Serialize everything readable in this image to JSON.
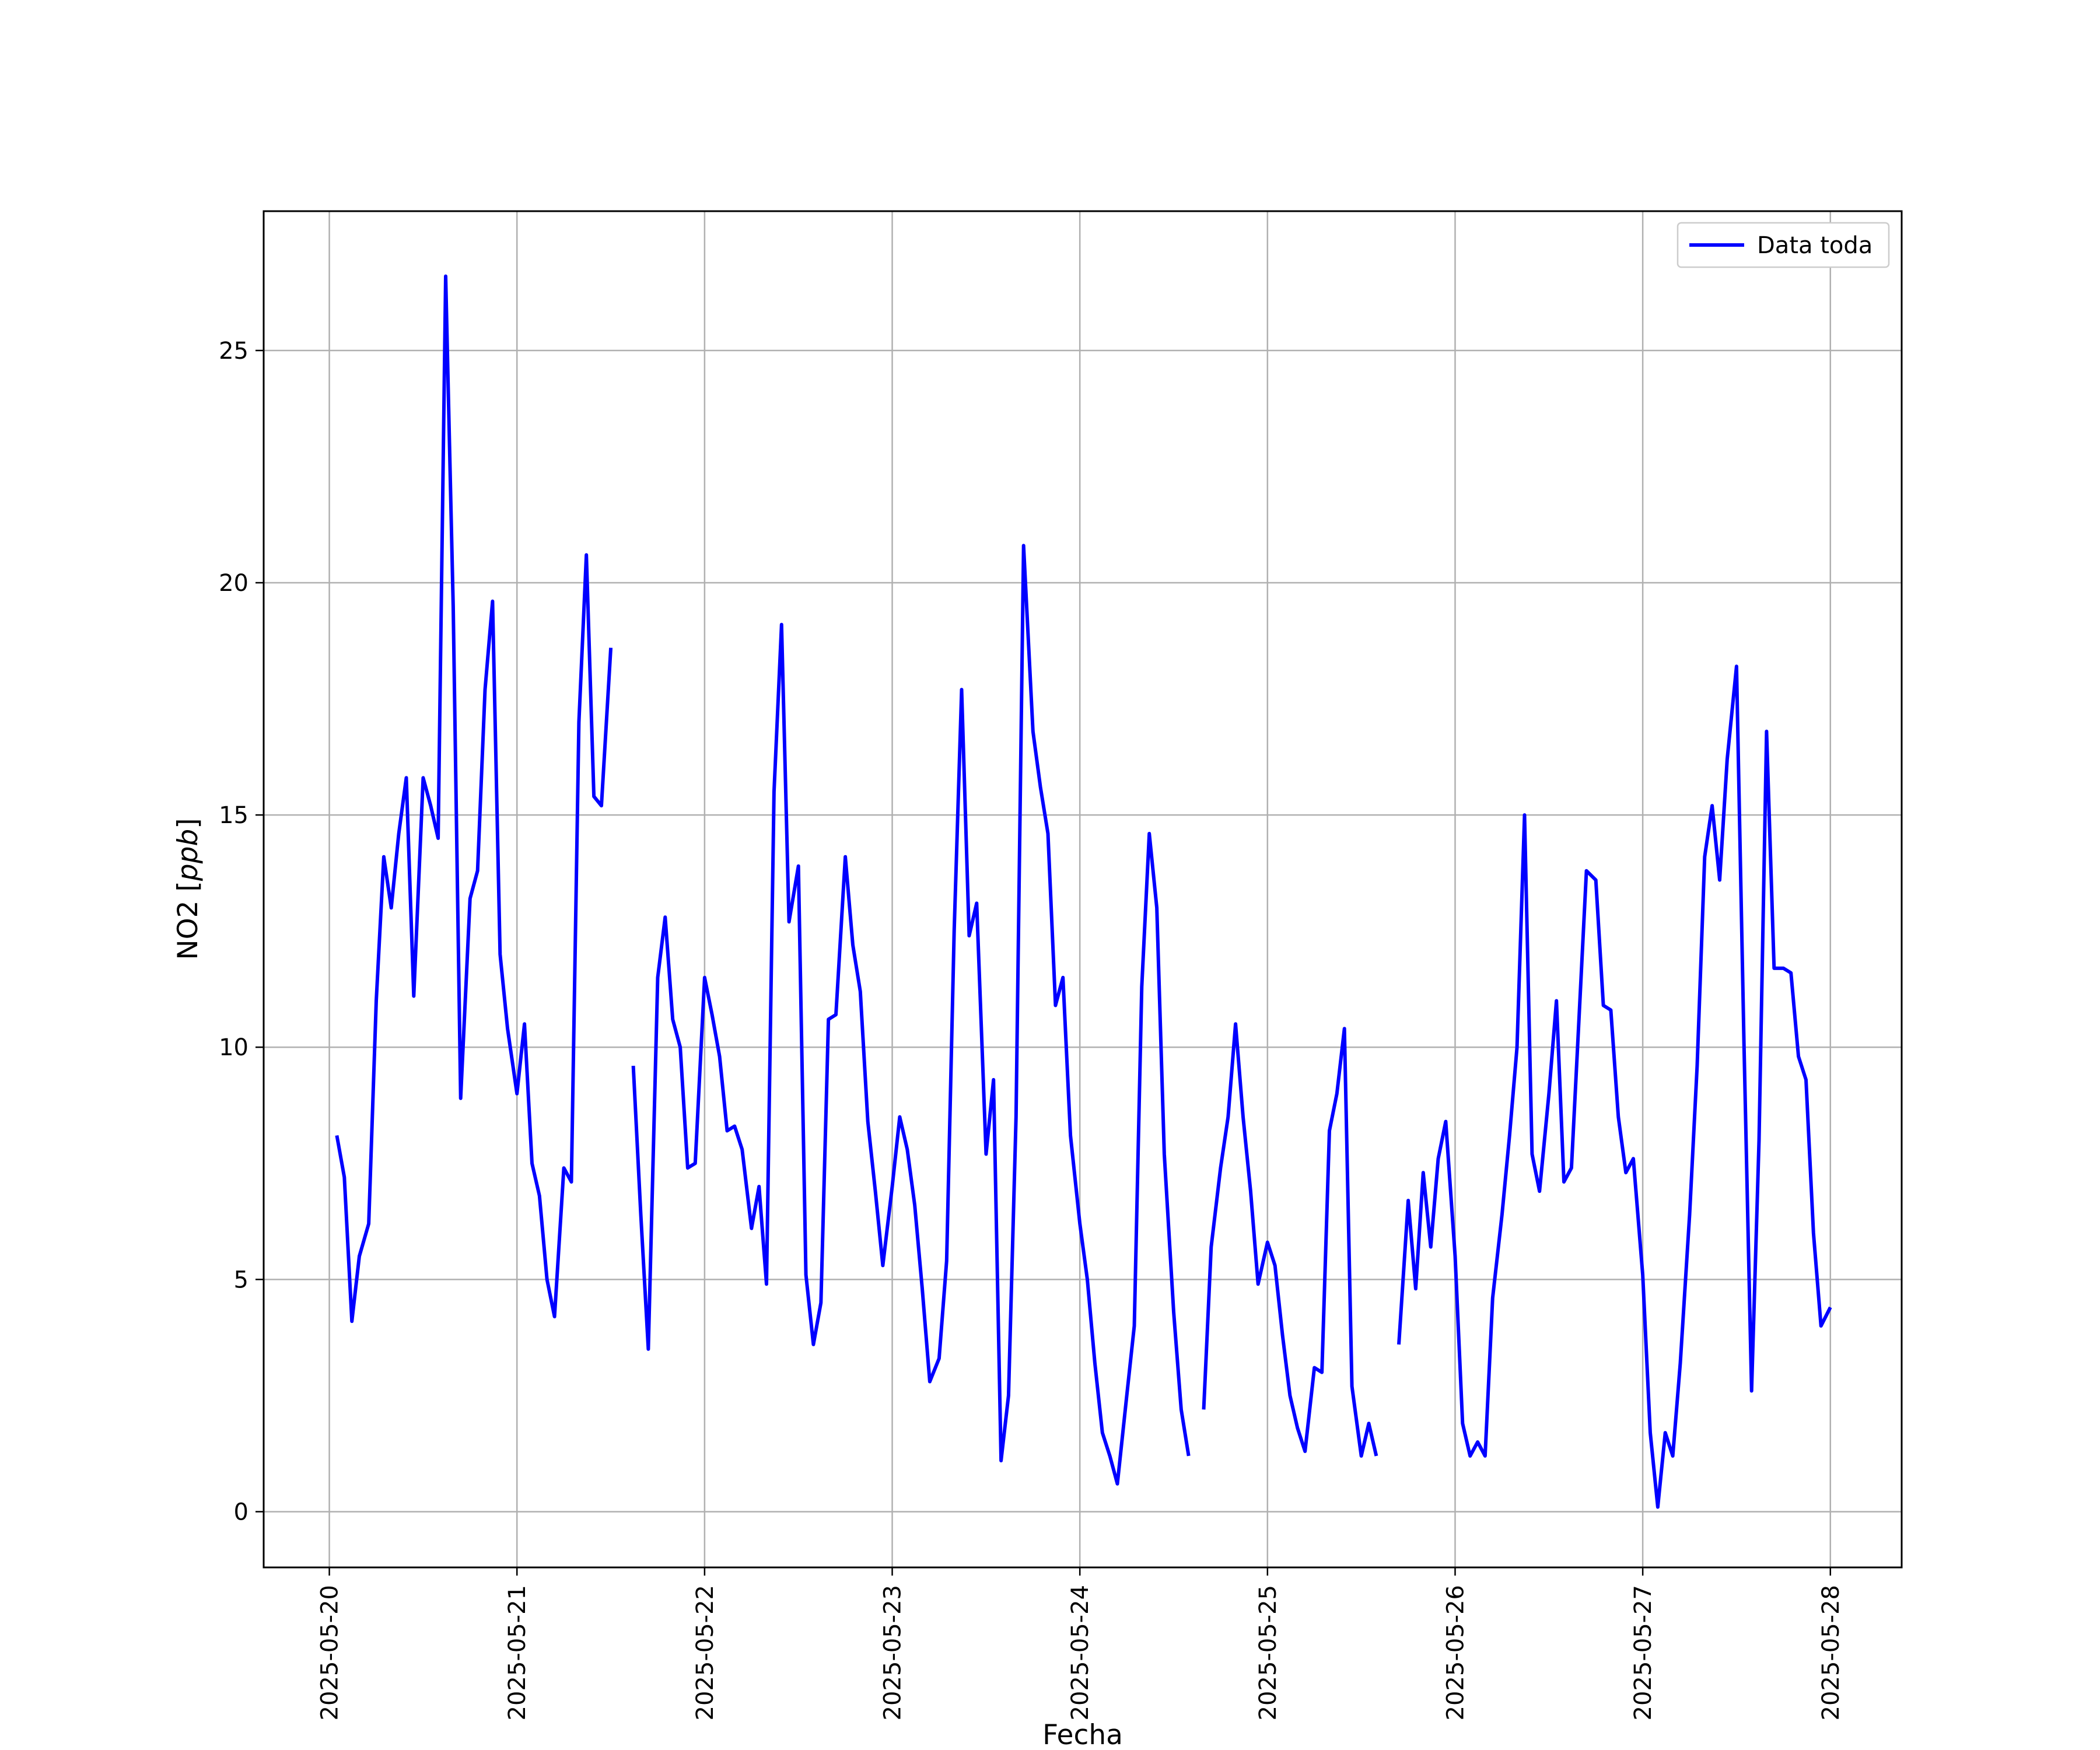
{
  "chart_data": {
    "type": "line",
    "title": "",
    "xlabel": "Fecha",
    "ylabel_main": "NO2 [",
    "ylabel_unit": "ppb",
    "ylabel_close": "]",
    "x_ticks": [
      "2025-05-20",
      "2025-05-21",
      "2025-05-22",
      "2025-05-23",
      "2025-05-24",
      "2025-05-25",
      "2025-05-26",
      "2025-05-27",
      "2025-05-28"
    ],
    "y_ticks": [
      "0",
      "5",
      "10",
      "15",
      "20",
      "25"
    ],
    "xlim_days": [
      -0.35,
      8.38
    ],
    "ylim": [
      -1.2,
      28.0
    ],
    "grid": true,
    "legend": {
      "position": "top-right",
      "entries": [
        "Data toda"
      ]
    },
    "colors": {
      "series": "#0000ff"
    },
    "series": [
      {
        "name": "Data toda",
        "segments": [
          [
            [
              0.04,
              8.1
            ],
            [
              0.08,
              7.2
            ],
            [
              0.12,
              4.1
            ],
            [
              0.16,
              5.5
            ],
            [
              0.21,
              6.2
            ],
            [
              0.25,
              11.0
            ],
            [
              0.29,
              14.1
            ],
            [
              0.33,
              13.0
            ],
            [
              0.37,
              14.6
            ],
            [
              0.41,
              15.8
            ],
            [
              0.45,
              11.1
            ],
            [
              0.5,
              15.8
            ],
            [
              0.54,
              15.2
            ],
            [
              0.58,
              14.5
            ],
            [
              0.62,
              26.6
            ],
            [
              0.66,
              19.5
            ],
            [
              0.7,
              8.9
            ],
            [
              0.75,
              13.2
            ],
            [
              0.79,
              13.8
            ],
            [
              0.83,
              17.7
            ],
            [
              0.87,
              19.6
            ],
            [
              0.91,
              12.0
            ],
            [
              0.95,
              10.4
            ],
            [
              1.0,
              9.0
            ],
            [
              1.04,
              10.5
            ],
            [
              1.08,
              7.5
            ],
            [
              1.12,
              6.8
            ],
            [
              1.16,
              5.0
            ],
            [
              1.2,
              4.2
            ],
            [
              1.25,
              7.4
            ],
            [
              1.29,
              7.1
            ],
            [
              1.33,
              17.0
            ],
            [
              1.37,
              20.6
            ],
            [
              1.41,
              15.4
            ],
            [
              1.45,
              15.2
            ],
            [
              1.5,
              18.6
            ]
          ],
          [
            [
              1.62,
              9.6
            ],
            [
              1.66,
              6.4
            ],
            [
              1.7,
              3.5
            ],
            [
              1.75,
              11.5
            ],
            [
              1.79,
              12.8
            ],
            [
              1.83,
              10.6
            ],
            [
              1.87,
              10.0
            ],
            [
              1.91,
              7.4
            ],
            [
              1.95,
              7.5
            ],
            [
              2.0,
              11.5
            ],
            [
              2.04,
              10.7
            ],
            [
              2.08,
              9.8
            ],
            [
              2.12,
              8.2
            ],
            [
              2.16,
              8.3
            ],
            [
              2.2,
              7.8
            ],
            [
              2.25,
              6.1
            ],
            [
              2.29,
              7.0
            ],
            [
              2.33,
              4.9
            ],
            [
              2.37,
              15.5
            ],
            [
              2.41,
              19.1
            ],
            [
              2.45,
              12.7
            ],
            [
              2.5,
              13.9
            ],
            [
              2.54,
              5.1
            ],
            [
              2.58,
              3.6
            ],
            [
              2.62,
              4.5
            ],
            [
              2.66,
              10.6
            ],
            [
              2.7,
              10.7
            ],
            [
              2.75,
              14.1
            ],
            [
              2.79,
              12.2
            ],
            [
              2.83,
              11.2
            ],
            [
              2.87,
              8.4
            ],
            [
              2.91,
              6.9
            ],
            [
              2.95,
              5.3
            ],
            [
              3.0,
              7.0
            ],
            [
              3.04,
              8.5
            ],
            [
              3.08,
              7.8
            ],
            [
              3.12,
              6.6
            ],
            [
              3.16,
              4.8
            ],
            [
              3.2,
              2.8
            ],
            [
              3.25,
              3.3
            ],
            [
              3.29,
              5.4
            ],
            [
              3.33,
              12.5
            ],
            [
              3.37,
              17.7
            ],
            [
              3.41,
              12.4
            ],
            [
              3.45,
              13.1
            ],
            [
              3.5,
              7.7
            ],
            [
              3.54,
              9.3
            ],
            [
              3.58,
              1.1
            ],
            [
              3.62,
              2.5
            ],
            [
              3.66,
              8.5
            ],
            [
              3.7,
              20.8
            ],
            [
              3.75,
              16.8
            ],
            [
              3.79,
              15.6
            ],
            [
              3.83,
              14.6
            ],
            [
              3.87,
              10.9
            ],
            [
              3.91,
              11.5
            ],
            [
              3.95,
              8.1
            ],
            [
              4.0,
              6.2
            ],
            [
              4.04,
              5.0
            ],
            [
              4.08,
              3.2
            ],
            [
              4.12,
              1.7
            ],
            [
              4.16,
              1.2
            ],
            [
              4.2,
              0.6
            ],
            [
              4.25,
              2.5
            ],
            [
              4.29,
              4.0
            ],
            [
              4.33,
              11.3
            ],
            [
              4.37,
              14.6
            ],
            [
              4.41,
              13.0
            ],
            [
              4.45,
              7.7
            ],
            [
              4.5,
              4.3
            ],
            [
              4.54,
              2.2
            ],
            [
              4.58,
              1.2
            ]
          ],
          [
            [
              4.66,
              2.2
            ],
            [
              4.7,
              5.7
            ],
            [
              4.75,
              7.4
            ],
            [
              4.79,
              8.5
            ],
            [
              4.83,
              10.5
            ],
            [
              4.87,
              8.5
            ],
            [
              4.91,
              6.9
            ],
            [
              4.95,
              4.9
            ],
            [
              5.0,
              5.8
            ],
            [
              5.04,
              5.3
            ],
            [
              5.08,
              3.8
            ],
            [
              5.12,
              2.5
            ],
            [
              5.16,
              1.8
            ],
            [
              5.2,
              1.3
            ],
            [
              5.25,
              3.1
            ],
            [
              5.29,
              3.0
            ],
            [
              5.33,
              8.2
            ],
            [
              5.37,
              9.0
            ],
            [
              5.41,
              10.4
            ],
            [
              5.45,
              2.7
            ],
            [
              5.5,
              1.2
            ],
            [
              5.54,
              1.9
            ],
            [
              5.58,
              1.2
            ]
          ],
          [
            [
              5.7,
              3.6
            ],
            [
              5.75,
              6.7
            ],
            [
              5.79,
              4.8
            ],
            [
              5.83,
              7.3
            ],
            [
              5.87,
              5.7
            ],
            [
              5.91,
              7.6
            ],
            [
              5.95,
              8.4
            ],
            [
              6.0,
              5.5
            ],
            [
              6.04,
              1.9
            ],
            [
              6.08,
              1.2
            ],
            [
              6.12,
              1.5
            ],
            [
              6.16,
              1.2
            ],
            [
              6.2,
              4.6
            ],
            [
              6.25,
              6.4
            ],
            [
              6.29,
              8.1
            ],
            [
              6.33,
              10.0
            ],
            [
              6.37,
              15.0
            ],
            [
              6.41,
              7.7
            ],
            [
              6.45,
              6.9
            ],
            [
              6.5,
              9.0
            ],
            [
              6.54,
              11.0
            ],
            [
              6.58,
              7.1
            ],
            [
              6.62,
              7.4
            ],
            [
              6.66,
              10.6
            ],
            [
              6.7,
              13.8
            ],
            [
              6.75,
              13.6
            ],
            [
              6.79,
              10.9
            ],
            [
              6.83,
              10.8
            ],
            [
              6.87,
              8.5
            ],
            [
              6.91,
              7.3
            ],
            [
              6.95,
              7.6
            ],
            [
              7.0,
              5.1
            ],
            [
              7.04,
              1.7
            ],
            [
              7.08,
              0.1
            ],
            [
              7.12,
              1.7
            ],
            [
              7.16,
              1.2
            ],
            [
              7.2,
              3.2
            ],
            [
              7.25,
              6.4
            ],
            [
              7.29,
              9.6
            ],
            [
              7.33,
              14.1
            ],
            [
              7.37,
              15.2
            ],
            [
              7.41,
              13.6
            ],
            [
              7.45,
              16.2
            ],
            [
              7.5,
              18.2
            ],
            [
              7.54,
              10.0
            ],
            [
              7.58,
              2.6
            ],
            [
              7.62,
              8.0
            ],
            [
              7.66,
              16.8
            ],
            [
              7.7,
              11.7
            ],
            [
              7.75,
              11.7
            ],
            [
              7.79,
              11.6
            ],
            [
              7.83,
              9.8
            ],
            [
              7.87,
              9.3
            ],
            [
              7.91,
              6.0
            ],
            [
              7.95,
              4.0
            ],
            [
              8.0,
              4.4
            ]
          ]
        ]
      }
    ]
  }
}
